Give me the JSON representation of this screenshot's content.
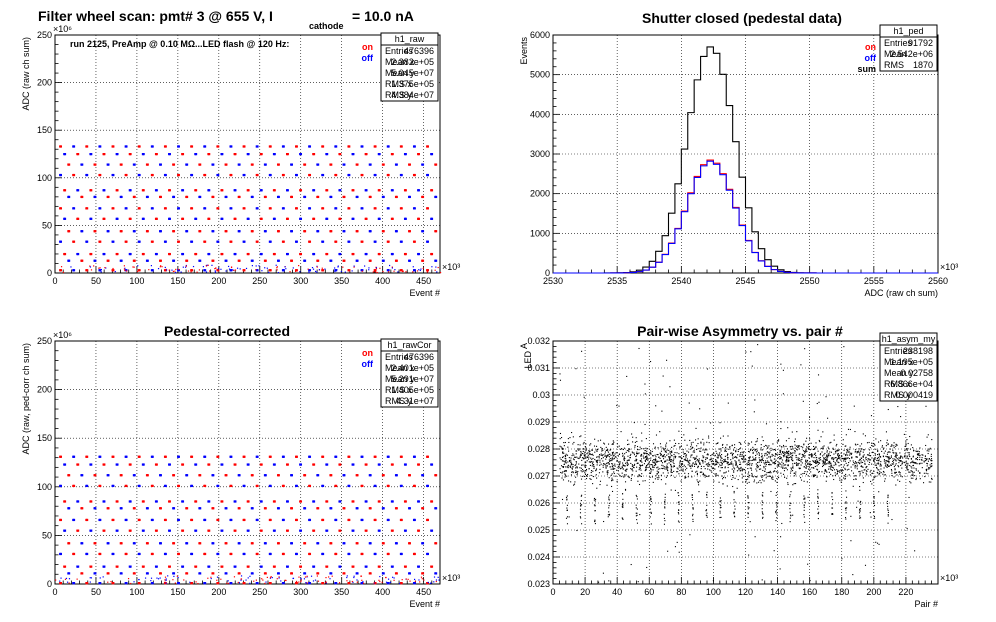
{
  "chart_data": [
    {
      "id": "raw",
      "type": "scatter",
      "title": "Filter wheel scan: pmt#   3 @   655 V, I",
      "title_sub": "cathode",
      "title_suffix": "= 10.0 nA",
      "annotation": "run 2125, PreAmp @ 0.10 MΩ...LED flash @  120 Hz:",
      "xlabel": "Event #",
      "ylabel": "ADC (raw ch sum)",
      "x_exponent": "×10³",
      "y_exponent": "×10⁶",
      "xlim": [
        0,
        470
      ],
      "ylim": [
        0,
        250
      ],
      "xticks": [
        0,
        50,
        100,
        150,
        200,
        250,
        300,
        350,
        400,
        450
      ],
      "yticks": [
        0,
        50,
        100,
        150,
        200,
        250
      ],
      "grid": true,
      "legend": {
        "placement": "top-right",
        "entries": [
          {
            "name": "on",
            "color": "#ff0000"
          },
          {
            "name": "off",
            "color": "#0000ff"
          }
        ]
      },
      "levels": [
        133,
        125,
        114,
        103,
        87,
        80,
        68,
        57,
        44,
        33,
        20,
        13,
        3
      ],
      "stats": {
        "name": "h1_raw",
        "rows": [
          [
            "Entries",
            "476396"
          ],
          [
            "Mean x",
            "2.382e+05"
          ],
          [
            "Mean y",
            "5.045e+07"
          ],
          [
            "RMS x",
            "1.375e+05"
          ],
          [
            "RMS y",
            "4.384e+07"
          ]
        ]
      }
    },
    {
      "id": "ped",
      "type": "line",
      "title": "Shutter closed (pedestal data)",
      "xlabel": "ADC (raw ch sum)",
      "ylabel": "Events",
      "x_exponent": "×10³",
      "xlim": [
        2530,
        2560
      ],
      "ylim": [
        0,
        6000
      ],
      "xticks": [
        2530,
        2535,
        2540,
        2545,
        2550,
        2555,
        2560
      ],
      "yticks": [
        0,
        1000,
        2000,
        3000,
        4000,
        5000,
        6000
      ],
      "grid": true,
      "legend": {
        "placement": "top-right",
        "entries": [
          {
            "name": "on",
            "color": "#ff0000"
          },
          {
            "name": "off",
            "color": "#0000ff"
          },
          {
            "name": "sum",
            "color": "#000000"
          }
        ]
      },
      "series": [
        {
          "name": "sum",
          "mean": 2542.3,
          "sigma": 1.87,
          "peak": 5700
        },
        {
          "name": "on",
          "mean": 2542.3,
          "sigma": 1.87,
          "peak": 2850
        },
        {
          "name": "off",
          "mean": 2542.3,
          "sigma": 1.87,
          "peak": 2820
        }
      ],
      "stats": {
        "name": "h1_ped",
        "rows": [
          [
            "Entries",
            "91792"
          ],
          [
            "Mean",
            "2.542e+06"
          ],
          [
            "RMS",
            "1870"
          ]
        ]
      }
    },
    {
      "id": "cor",
      "type": "scatter",
      "title": "Pedestal-corrected",
      "xlabel": "Event #",
      "ylabel": "ADC (raw, ped-corr ch sum)",
      "x_exponent": "×10³",
      "y_exponent": "×10⁶",
      "xlim": [
        0,
        470
      ],
      "ylim": [
        0,
        250
      ],
      "xticks": [
        0,
        50,
        100,
        150,
        200,
        250,
        300,
        350,
        400,
        450
      ],
      "yticks": [
        0,
        50,
        100,
        150,
        200,
        250
      ],
      "grid": true,
      "legend": {
        "placement": "top-right",
        "entries": [
          {
            "name": "on",
            "color": "#ff0000"
          },
          {
            "name": "off",
            "color": "#0000ff"
          }
        ]
      },
      "levels": [
        131,
        123,
        112,
        101,
        85,
        78,
        66,
        55,
        42,
        31,
        18,
        11,
        1
      ],
      "stats": {
        "name": "h1_rawCor",
        "rows": [
          [
            "Entries",
            "476396"
          ],
          [
            "Mean x",
            "2.401e+05"
          ],
          [
            "Mean y",
            "5.291e+07"
          ],
          [
            "RMS x",
            "1.405e+05"
          ],
          [
            "RMS y",
            "4.31e+07"
          ]
        ]
      }
    },
    {
      "id": "asym",
      "type": "scatter",
      "title": "Pair-wise Asymmetry vs. pair #",
      "xlabel": "Pair #",
      "ylabel": "A",
      "ylabel_sub": "LED",
      "x_exponent": "×10³",
      "xlim": [
        0,
        240
      ],
      "ylim": [
        0.023,
        0.032
      ],
      "xticks": [
        0,
        20,
        40,
        60,
        80,
        100,
        120,
        140,
        160,
        180,
        200,
        220
      ],
      "yticks": [
        0.023,
        0.024,
        0.025,
        0.026,
        0.027,
        0.028,
        0.029,
        0.03,
        0.031,
        0.032
      ],
      "grid": true,
      "band_center": 0.02758,
      "band_sigma": 0.000419,
      "stats": {
        "name": "h1_asym_my",
        "rows": [
          [
            "Entries",
            "238198"
          ],
          [
            "Mean x",
            "1.195e+05"
          ],
          [
            "Mean y",
            "0.02758"
          ],
          [
            "RMS x",
            "6.866e+04"
          ],
          [
            "RMS y",
            "0.000419"
          ]
        ]
      }
    }
  ]
}
